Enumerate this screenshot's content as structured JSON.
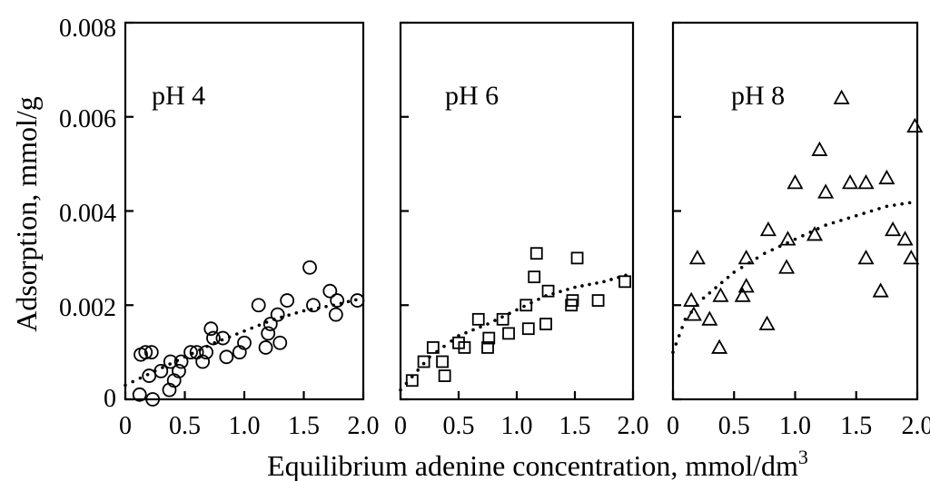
{
  "chart_data": [
    {
      "type": "scatter",
      "panel_label": "pH 4",
      "marker": "circle",
      "xlim": [
        0,
        2.0
      ],
      "ylim": [
        0,
        0.008
      ],
      "x_ticks": [
        "0",
        "0.5",
        "1.0",
        "1.5",
        "2.0"
      ],
      "y_ticks": [
        "0",
        "0.002",
        "0.004",
        "0.006",
        "0.008"
      ],
      "points": [
        [
          0.12,
          0.0001
        ],
        [
          0.13,
          0.00095
        ],
        [
          0.17,
          0.001
        ],
        [
          0.22,
          0.001
        ],
        [
          0.2,
          0.0005
        ],
        [
          0.23,
          0.0
        ],
        [
          0.3,
          0.0006
        ],
        [
          0.37,
          0.0002
        ],
        [
          0.38,
          0.0008
        ],
        [
          0.41,
          0.0004
        ],
        [
          0.45,
          0.0006
        ],
        [
          0.47,
          0.0008
        ],
        [
          0.55,
          0.001
        ],
        [
          0.6,
          0.001
        ],
        [
          0.65,
          0.0008
        ],
        [
          0.68,
          0.001
        ],
        [
          0.72,
          0.0015
        ],
        [
          0.74,
          0.0013
        ],
        [
          0.82,
          0.0013
        ],
        [
          0.85,
          0.0009
        ],
        [
          0.96,
          0.001
        ],
        [
          1.0,
          0.0012
        ],
        [
          1.12,
          0.002
        ],
        [
          1.18,
          0.0011
        ],
        [
          1.2,
          0.0014
        ],
        [
          1.22,
          0.0016
        ],
        [
          1.28,
          0.0018
        ],
        [
          1.3,
          0.0012
        ],
        [
          1.36,
          0.0021
        ],
        [
          1.55,
          0.0028
        ],
        [
          1.58,
          0.002
        ],
        [
          1.72,
          0.0023
        ],
        [
          1.77,
          0.0018
        ],
        [
          1.78,
          0.0021
        ],
        [
          1.95,
          0.0021
        ]
      ],
      "fit": [
        [
          0.0,
          0.0003
        ],
        [
          0.25,
          0.0006
        ],
        [
          0.5,
          0.0009
        ],
        [
          0.75,
          0.0012
        ],
        [
          1.0,
          0.00145
        ],
        [
          1.25,
          0.0017
        ],
        [
          1.5,
          0.00188
        ],
        [
          1.75,
          0.002
        ],
        [
          2.0,
          0.00215
        ]
      ]
    },
    {
      "type": "scatter",
      "panel_label": "pH 6",
      "marker": "square",
      "xlim": [
        0,
        2.0
      ],
      "ylim": [
        0,
        0.008
      ],
      "x_ticks": [
        "0",
        "0.5",
        "1.0",
        "1.5",
        "2.0"
      ],
      "points": [
        [
          0.1,
          0.0004
        ],
        [
          0.2,
          0.0008
        ],
        [
          0.28,
          0.0011
        ],
        [
          0.36,
          0.0008
        ],
        [
          0.38,
          0.0005
        ],
        [
          0.5,
          0.0012
        ],
        [
          0.55,
          0.0011
        ],
        [
          0.67,
          0.0017
        ],
        [
          0.75,
          0.0011
        ],
        [
          0.76,
          0.0013
        ],
        [
          0.88,
          0.0017
        ],
        [
          0.93,
          0.0014
        ],
        [
          1.08,
          0.002
        ],
        [
          1.1,
          0.0015
        ],
        [
          1.15,
          0.0026
        ],
        [
          1.17,
          0.0031
        ],
        [
          1.25,
          0.0016
        ],
        [
          1.27,
          0.0023
        ],
        [
          1.47,
          0.002
        ],
        [
          1.48,
          0.0021
        ],
        [
          1.52,
          0.003
        ],
        [
          1.7,
          0.0021
        ],
        [
          1.93,
          0.0025
        ]
      ],
      "fit": [
        [
          0.0,
          0.0002
        ],
        [
          0.25,
          0.0009
        ],
        [
          0.5,
          0.00135
        ],
        [
          0.75,
          0.0016
        ],
        [
          1.0,
          0.0019
        ],
        [
          1.25,
          0.0022
        ],
        [
          1.5,
          0.00238
        ],
        [
          1.75,
          0.0025
        ],
        [
          2.0,
          0.00268
        ]
      ]
    },
    {
      "type": "scatter",
      "panel_label": "pH 8",
      "marker": "triangle",
      "xlim": [
        0,
        2.0
      ],
      "ylim": [
        0,
        0.008
      ],
      "x_ticks": [
        "0",
        "0.5",
        "1.0",
        "1.5",
        "2.0"
      ],
      "points": [
        [
          0.15,
          0.0021
        ],
        [
          0.17,
          0.0018
        ],
        [
          0.2,
          0.003
        ],
        [
          0.3,
          0.0017
        ],
        [
          0.38,
          0.0011
        ],
        [
          0.39,
          0.0022
        ],
        [
          0.57,
          0.0022
        ],
        [
          0.6,
          0.0024
        ],
        [
          0.6,
          0.003
        ],
        [
          0.77,
          0.0016
        ],
        [
          0.78,
          0.0036
        ],
        [
          0.93,
          0.0028
        ],
        [
          0.94,
          0.0034
        ],
        [
          1.0,
          0.0046
        ],
        [
          1.16,
          0.0035
        ],
        [
          1.2,
          0.0053
        ],
        [
          1.25,
          0.0044
        ],
        [
          1.38,
          0.0064
        ],
        [
          1.45,
          0.0046
        ],
        [
          1.58,
          0.0046
        ],
        [
          1.58,
          0.003
        ],
        [
          1.7,
          0.0023
        ],
        [
          1.75,
          0.0047
        ],
        [
          1.8,
          0.0036
        ],
        [
          1.9,
          0.0034
        ],
        [
          1.95,
          0.003
        ],
        [
          1.98,
          0.0058
        ]
      ],
      "fit": [
        [
          0.0,
          0.001
        ],
        [
          0.1,
          0.0017
        ],
        [
          0.25,
          0.00215
        ],
        [
          0.5,
          0.0027
        ],
        [
          0.75,
          0.0031
        ],
        [
          1.0,
          0.0034
        ],
        [
          1.25,
          0.0037
        ],
        [
          1.5,
          0.0039
        ],
        [
          1.75,
          0.0041
        ],
        [
          2.0,
          0.0042
        ]
      ]
    }
  ],
  "ylabel": "Adsorption, mmol/g",
  "xlabel": "Equilibrium adenine concentration, mmol/dm",
  "xlabel_superscript": "3"
}
